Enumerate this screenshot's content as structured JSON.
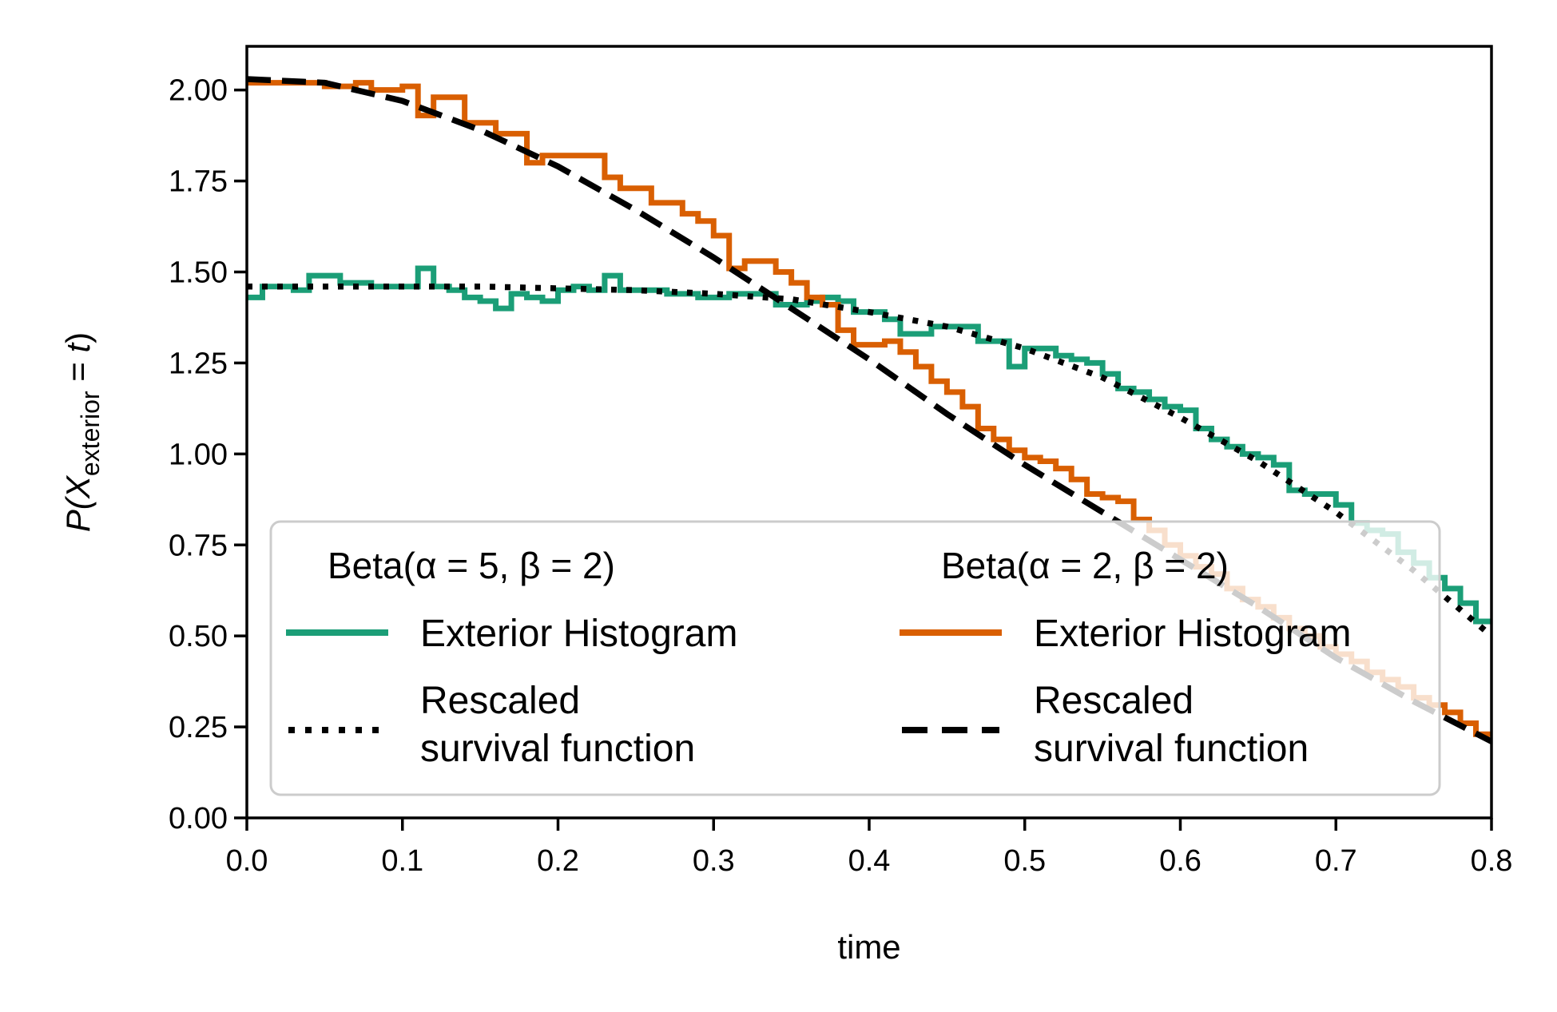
{
  "chart_data": {
    "type": "line",
    "xlabel": "time",
    "ylabel": {
      "base": "P(X",
      "sub": "exterior",
      "rest": " = ",
      "var": "t",
      "close": ")"
    },
    "xlim": [
      0,
      0.8
    ],
    "ylim": [
      0,
      2.12
    ],
    "xticks": [
      0.0,
      0.1,
      0.2,
      0.3,
      0.4,
      0.5,
      0.6,
      0.7,
      0.8
    ],
    "xtick_labels": [
      "0.0",
      "0.1",
      "0.2",
      "0.3",
      "0.4",
      "0.5",
      "0.6",
      "0.7",
      "0.8"
    ],
    "yticks": [
      0.0,
      0.25,
      0.5,
      0.75,
      1.0,
      1.25,
      1.5,
      1.75,
      2.0
    ],
    "ytick_labels": [
      "0.00",
      "0.25",
      "0.50",
      "0.75",
      "1.00",
      "1.25",
      "1.50",
      "1.75",
      "2.00"
    ],
    "grid": false,
    "legend_placement": "lower-left",
    "legend_columns": [
      {
        "title": "Beta(α = 5, β = 2)",
        "entries": [
          {
            "label": "Exterior Histogram",
            "style": "solid",
            "color": "#1b9e77"
          },
          {
            "label_lines": [
              "Rescaled",
              "survival function"
            ],
            "style": "dotted",
            "color": "#000000"
          }
        ]
      },
      {
        "title": "Beta(α = 2, β = 2)",
        "entries": [
          {
            "label": "Exterior Histogram",
            "style": "solid",
            "color": "#d95f02"
          },
          {
            "label_lines": [
              "Rescaled",
              "survival function"
            ],
            "style": "dashed",
            "color": "#000000"
          }
        ]
      }
    ],
    "series": [
      {
        "kind": "step",
        "color": "#1b9e77",
        "bin_edges": [
          0.0,
          0.01,
          0.02,
          0.03,
          0.04,
          0.05,
          0.06,
          0.07,
          0.08,
          0.09,
          0.1,
          0.11,
          0.12,
          0.13,
          0.14,
          0.15,
          0.16,
          0.17,
          0.18,
          0.19,
          0.2,
          0.21,
          0.22,
          0.23,
          0.24,
          0.25,
          0.26,
          0.27,
          0.28,
          0.29,
          0.3,
          0.31,
          0.32,
          0.33,
          0.34,
          0.35,
          0.36,
          0.37,
          0.38,
          0.39,
          0.4,
          0.41,
          0.42,
          0.43,
          0.44,
          0.45,
          0.46,
          0.47,
          0.48,
          0.49,
          0.5,
          0.51,
          0.52,
          0.53,
          0.54,
          0.55,
          0.56,
          0.57,
          0.58,
          0.59,
          0.6,
          0.61,
          0.62,
          0.63,
          0.64,
          0.65,
          0.66,
          0.67,
          0.68,
          0.69,
          0.7,
          0.71,
          0.72,
          0.73,
          0.74,
          0.75,
          0.76,
          0.77,
          0.78,
          0.79,
          0.8
        ],
        "values": [
          1.43,
          1.46,
          1.46,
          1.45,
          1.49,
          1.49,
          1.47,
          1.47,
          1.46,
          1.46,
          1.46,
          1.51,
          1.46,
          1.45,
          1.43,
          1.42,
          1.4,
          1.44,
          1.43,
          1.42,
          1.45,
          1.46,
          1.45,
          1.49,
          1.45,
          1.45,
          1.45,
          1.44,
          1.44,
          1.43,
          1.43,
          1.44,
          1.44,
          1.44,
          1.41,
          1.41,
          1.42,
          1.43,
          1.42,
          1.39,
          1.39,
          1.37,
          1.33,
          1.33,
          1.35,
          1.35,
          1.35,
          1.31,
          1.31,
          1.24,
          1.29,
          1.29,
          1.27,
          1.26,
          1.25,
          1.22,
          1.18,
          1.17,
          1.15,
          1.13,
          1.12,
          1.07,
          1.04,
          1.02,
          1.0,
          0.99,
          0.97,
          0.9,
          0.89,
          0.89,
          0.86,
          0.81,
          0.79,
          0.78,
          0.73,
          0.7,
          0.66,
          0.63,
          0.59,
          0.54
        ]
      },
      {
        "kind": "step",
        "color": "#d95f02",
        "bin_edges": [
          0.0,
          0.01,
          0.02,
          0.03,
          0.04,
          0.05,
          0.06,
          0.07,
          0.08,
          0.09,
          0.1,
          0.11,
          0.12,
          0.13,
          0.14,
          0.15,
          0.16,
          0.17,
          0.18,
          0.19,
          0.2,
          0.21,
          0.22,
          0.23,
          0.24,
          0.25,
          0.26,
          0.27,
          0.28,
          0.29,
          0.3,
          0.31,
          0.32,
          0.33,
          0.34,
          0.35,
          0.36,
          0.37,
          0.38,
          0.39,
          0.4,
          0.41,
          0.42,
          0.43,
          0.44,
          0.45,
          0.46,
          0.47,
          0.48,
          0.49,
          0.5,
          0.51,
          0.52,
          0.53,
          0.54,
          0.55,
          0.56,
          0.57,
          0.58,
          0.59,
          0.6,
          0.61,
          0.62,
          0.63,
          0.64,
          0.65,
          0.66,
          0.67,
          0.68,
          0.69,
          0.7,
          0.71,
          0.72,
          0.73,
          0.74,
          0.75,
          0.76,
          0.77,
          0.78,
          0.79,
          0.8
        ],
        "values": [
          2.02,
          2.02,
          2.02,
          2.02,
          2.02,
          2.01,
          2.01,
          2.02,
          2.0,
          2.0,
          2.01,
          1.93,
          1.98,
          1.98,
          1.91,
          1.91,
          1.88,
          1.88,
          1.8,
          1.82,
          1.82,
          1.82,
          1.82,
          1.76,
          1.73,
          1.73,
          1.69,
          1.69,
          1.66,
          1.64,
          1.6,
          1.51,
          1.53,
          1.53,
          1.5,
          1.47,
          1.43,
          1.41,
          1.34,
          1.3,
          1.3,
          1.31,
          1.28,
          1.24,
          1.2,
          1.17,
          1.13,
          1.07,
          1.04,
          1.01,
          0.99,
          0.98,
          0.96,
          0.93,
          0.89,
          0.88,
          0.87,
          0.82,
          0.79,
          0.75,
          0.72,
          0.69,
          0.67,
          0.63,
          0.6,
          0.58,
          0.55,
          0.52,
          0.5,
          0.47,
          0.45,
          0.43,
          0.4,
          0.38,
          0.36,
          0.33,
          0.31,
          0.29,
          0.26,
          0.23
        ]
      },
      {
        "kind": "curve",
        "color": "#000000",
        "dash": "dotted",
        "x": [
          0.0,
          0.05,
          0.1,
          0.15,
          0.2,
          0.25,
          0.3,
          0.35,
          0.4,
          0.45,
          0.5,
          0.55,
          0.6,
          0.65,
          0.7,
          0.75,
          0.8
        ],
        "y": [
          1.46,
          1.46,
          1.46,
          1.46,
          1.455,
          1.45,
          1.44,
          1.425,
          1.39,
          1.35,
          1.29,
          1.21,
          1.1,
          0.98,
          0.84,
          0.68,
          0.5
        ]
      },
      {
        "kind": "curve",
        "color": "#000000",
        "dash": "dashed",
        "x": [
          0.0,
          0.05,
          0.1,
          0.15,
          0.2,
          0.25,
          0.3,
          0.35,
          0.4,
          0.45,
          0.5,
          0.55,
          0.6,
          0.65,
          0.7,
          0.75,
          0.8
        ],
        "y": [
          2.03,
          2.02,
          1.97,
          1.89,
          1.79,
          1.67,
          1.54,
          1.4,
          1.26,
          1.11,
          0.97,
          0.84,
          0.71,
          0.58,
          0.44,
          0.32,
          0.21
        ]
      }
    ]
  }
}
